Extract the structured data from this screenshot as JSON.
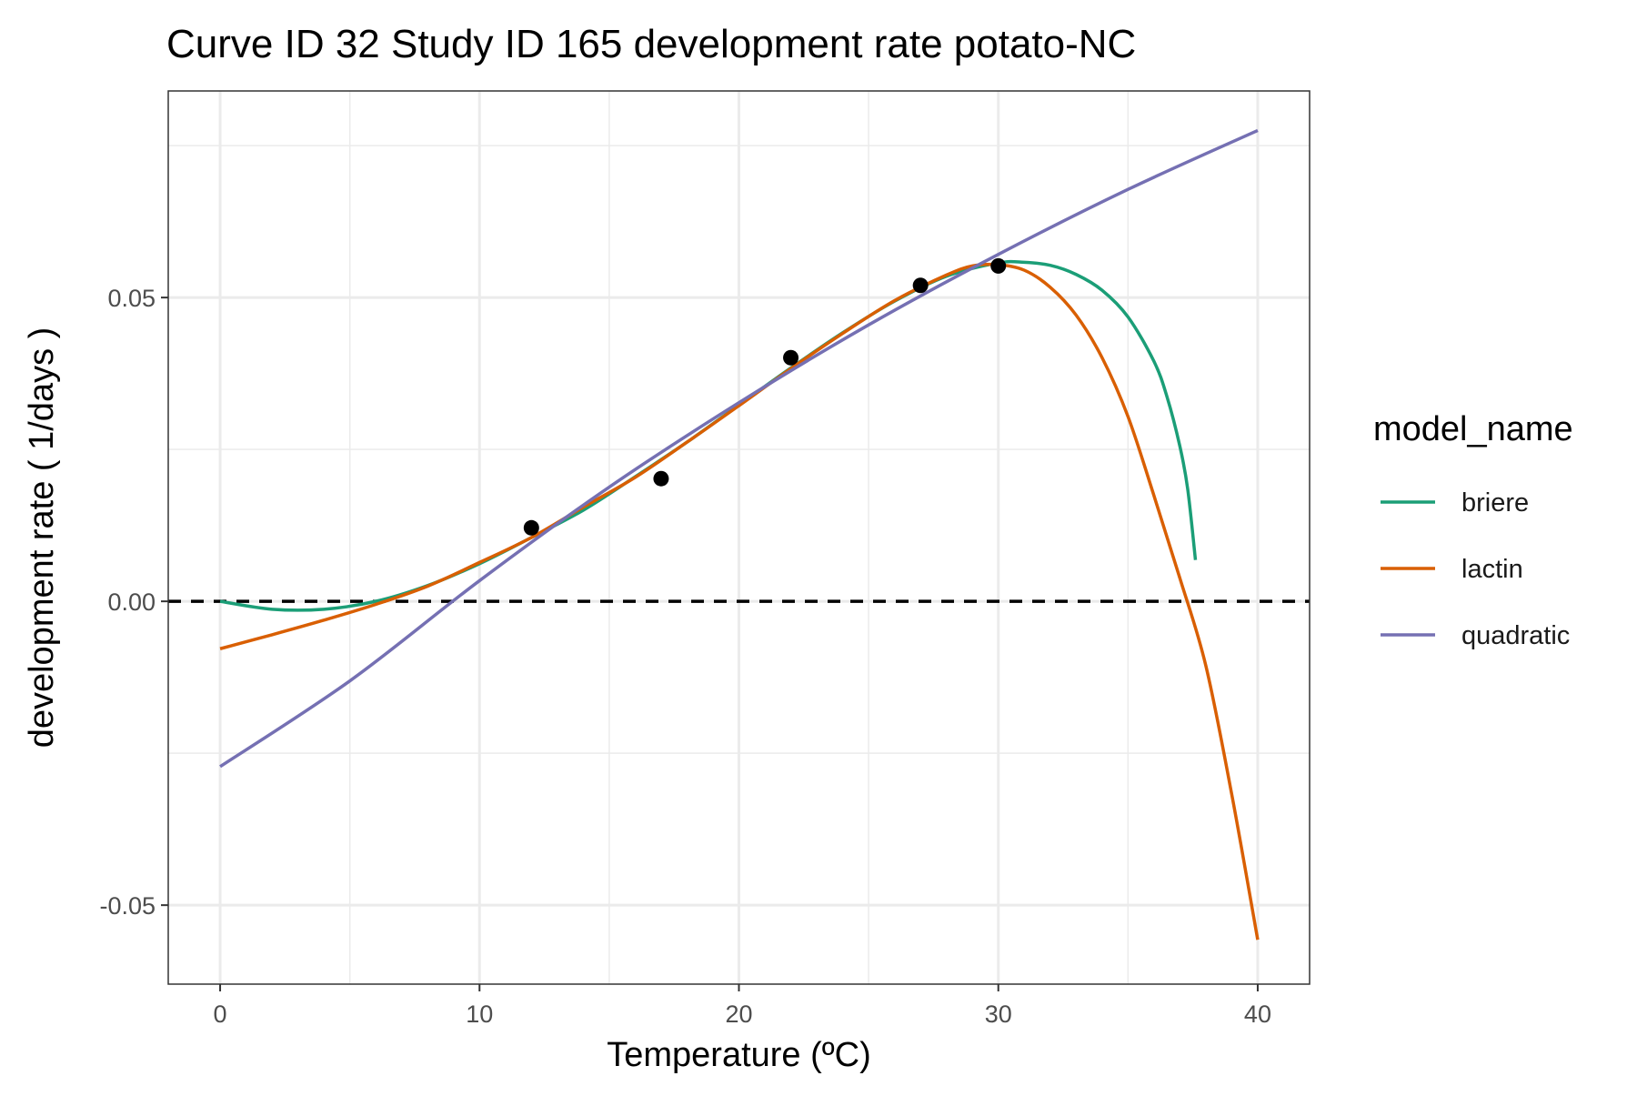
{
  "chart_data": {
    "type": "line",
    "title": "Curve ID 32 Study ID 165 development rate potato-NC",
    "xlabel": "Temperature (ºC)",
    "ylabel": "development rate ( 1/days )",
    "xlim": [
      -2,
      42
    ],
    "ylim": [
      -0.063,
      0.084
    ],
    "x_ticks": [
      0,
      10,
      20,
      30,
      40
    ],
    "x_tick_labels": [
      "0",
      "10",
      "20",
      "30",
      "40"
    ],
    "y_ticks": [
      -0.05,
      0.0,
      0.05
    ],
    "y_tick_labels": [
      "-0.05",
      "0.00",
      "0.05"
    ],
    "grid": true,
    "reference_line": {
      "y": 0,
      "style": "dashed",
      "color": "#000000"
    },
    "points": {
      "x": [
        12,
        17,
        22,
        27,
        30
      ],
      "y": [
        0.0121,
        0.0202,
        0.0401,
        0.052,
        0.0552
      ],
      "color": "#000000"
    },
    "legend": {
      "title": "model_name",
      "position": "right"
    },
    "series": [
      {
        "name": "briere",
        "color": "#1b9e77",
        "x": [
          0,
          2,
          4,
          6,
          8,
          10,
          12,
          14,
          16,
          18,
          20,
          22,
          24,
          26,
          28,
          30,
          31,
          32,
          33,
          34,
          35,
          36,
          36.5,
          37,
          37.3,
          37.6
        ],
        "y": [
          0.0,
          -0.0013,
          -0.0013,
          0.0,
          0.0026,
          0.0062,
          0.0105,
          0.015,
          0.0205,
          0.0262,
          0.0323,
          0.0384,
          0.0442,
          0.0494,
          0.0535,
          0.0557,
          0.0558,
          0.0553,
          0.0538,
          0.0512,
          0.0468,
          0.0395,
          0.0337,
          0.0255,
          0.0185,
          0.0068
        ]
      },
      {
        "name": "lactin",
        "color": "#d95f02",
        "x": [
          0,
          2,
          4,
          6,
          8,
          10,
          12,
          14,
          16,
          18,
          20,
          22,
          24,
          26,
          28,
          29,
          30,
          31,
          32,
          33,
          34,
          35,
          36,
          37,
          38,
          39,
          40
        ],
        "y": [
          -0.0078,
          -0.0055,
          -0.0031,
          -0.0005,
          0.0025,
          0.0064,
          0.0105,
          0.0155,
          0.0204,
          0.0262,
          0.0322,
          0.0383,
          0.0441,
          0.0495,
          0.0537,
          0.0552,
          0.0554,
          0.0545,
          0.0517,
          0.0471,
          0.0401,
          0.0304,
          0.0174,
          0.0038,
          -0.0106,
          -0.0318,
          -0.0557
        ]
      },
      {
        "name": "quadratic",
        "color": "#7570b3",
        "x": [
          0,
          5,
          10,
          15,
          20,
          25,
          30,
          35,
          40
        ],
        "y": [
          -0.0272,
          -0.0131,
          0.0034,
          0.0188,
          0.0327,
          0.0455,
          0.0571,
          0.0678,
          0.0775
        ]
      }
    ]
  }
}
